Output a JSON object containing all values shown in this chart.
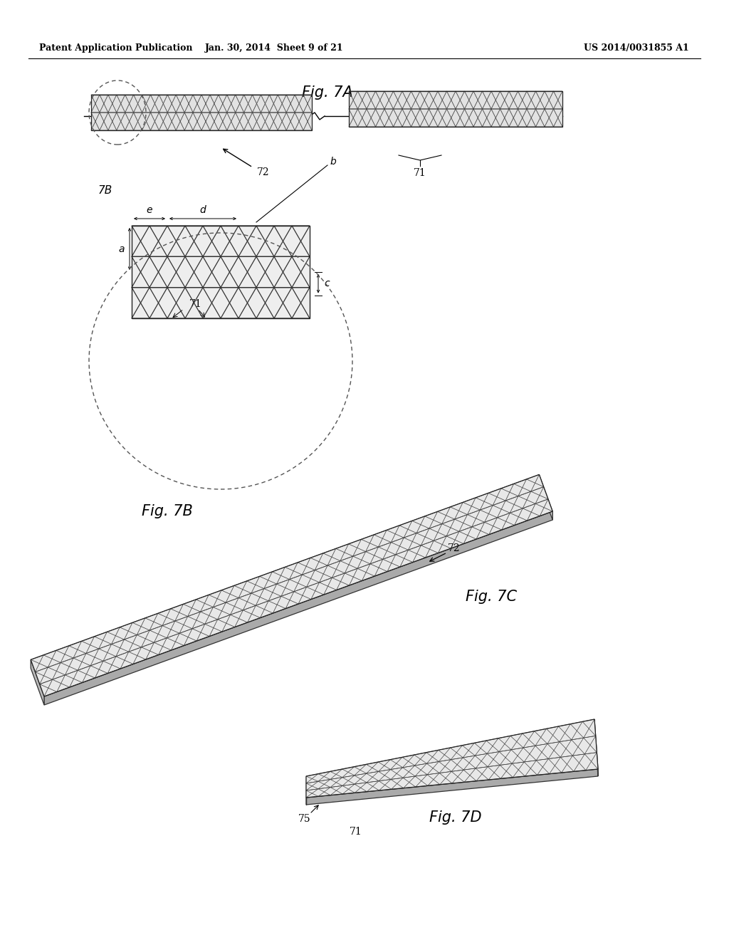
{
  "background_color": "#ffffff",
  "header_left": "Patent Application Publication",
  "header_center": "Jan. 30, 2014  Sheet 9 of 21",
  "header_right": "US 2014/0031855 A1",
  "fig7A_label": "Fig. 7A",
  "fig7B_label": "Fig. 7B",
  "fig7C_label": "Fig. 7C",
  "fig7D_label": "Fig. 7D",
  "label_71": "71",
  "label_72": "72",
  "label_7B": "7B",
  "label_75": "75"
}
